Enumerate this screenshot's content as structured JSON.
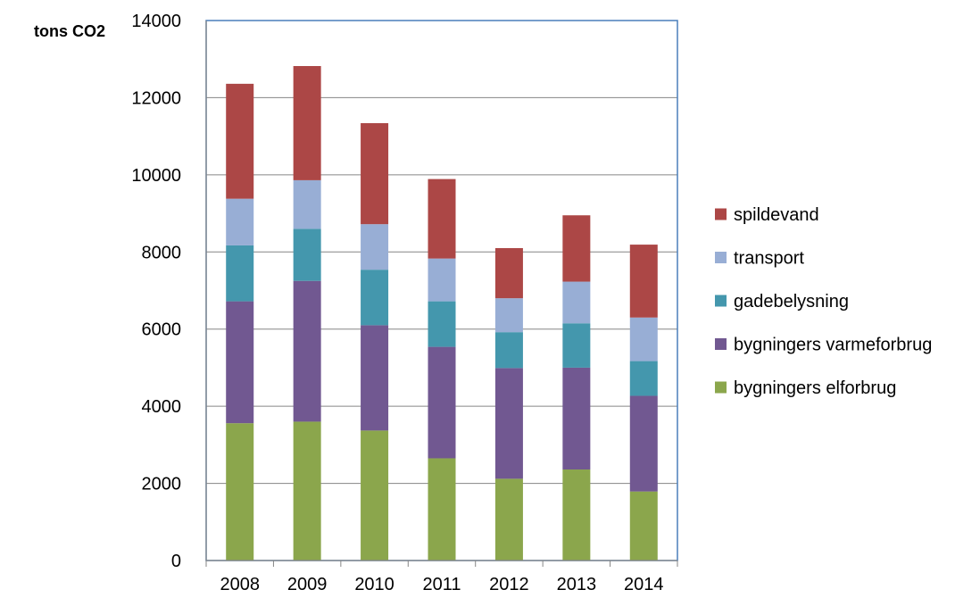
{
  "chart_data": {
    "type": "bar",
    "stacked": true,
    "ylabel": "tons CO2",
    "ylim": [
      0,
      14000
    ],
    "yticks": [
      0,
      2000,
      4000,
      6000,
      8000,
      10000,
      12000,
      14000
    ],
    "grid": true,
    "legend_position": "right",
    "categories": [
      "2008",
      "2009",
      "2010",
      "2011",
      "2012",
      "2013",
      "2014"
    ],
    "series": [
      {
        "name": "bygningers elforbrug",
        "color": "#8BA64C",
        "values": [
          3560,
          3600,
          3370,
          2650,
          2120,
          2360,
          1790
        ]
      },
      {
        "name": "bygningers varmeforbrug",
        "color": "#715891",
        "values": [
          3160,
          3650,
          2730,
          2890,
          2870,
          2640,
          2480
        ]
      },
      {
        "name": "gadebelysning",
        "color": "#4497AD",
        "values": [
          1450,
          1350,
          1440,
          1180,
          930,
          1150,
          900
        ]
      },
      {
        "name": "transport",
        "color": "#98AED5",
        "values": [
          1210,
          1260,
          1180,
          1110,
          880,
          1080,
          1130
        ]
      },
      {
        "name": "spildevand",
        "color": "#AC4746",
        "values": [
          2980,
          2960,
          2620,
          2060,
          1300,
          1720,
          1890
        ]
      }
    ]
  }
}
